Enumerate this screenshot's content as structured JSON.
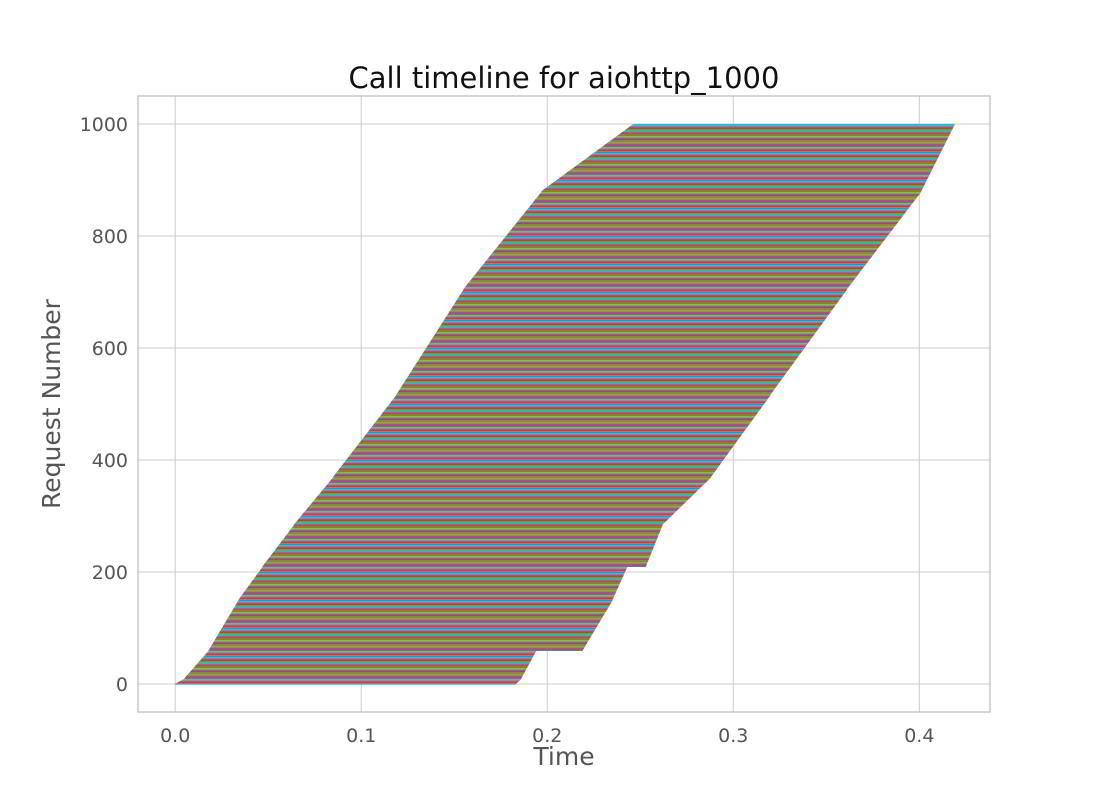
{
  "chart_data": {
    "type": "line",
    "title": "Call timeline for aiohttp_1000",
    "xlabel": "Time",
    "ylabel": "Request Number",
    "xlim": [
      -0.02,
      0.438
    ],
    "ylim": [
      -50,
      1050
    ],
    "x_ticks": [
      0.0,
      0.1,
      0.2,
      0.3,
      0.4
    ],
    "x_tick_labels": [
      "0.0",
      "0.1",
      "0.2",
      "0.3",
      "0.4"
    ],
    "y_ticks": [
      0,
      200,
      400,
      600,
      800,
      1000
    ],
    "y_tick_labels": [
      "0",
      "200",
      "400",
      "600",
      "800",
      "1000"
    ],
    "grid": true,
    "n_requests": 1000,
    "segment_description": "Each request i is drawn as a horizontal line at y=i from its start time to its end time; start times advance in batches, end times rise roughly linearly.",
    "batches": [
      {
        "first_request": 0,
        "last_request": 10,
        "start": [
          0.0,
          0.005
        ],
        "end": [
          0.183,
          0.186
        ]
      },
      {
        "first_request": 10,
        "last_request": 60,
        "start": [
          0.005,
          0.018
        ],
        "end": [
          0.186,
          0.194
        ]
      },
      {
        "first_request": 60,
        "last_request": 150,
        "start": [
          0.018,
          0.034
        ],
        "end": [
          0.219,
          0.235
        ]
      },
      {
        "first_request": 150,
        "last_request": 210,
        "start": [
          0.034,
          0.047
        ],
        "end": [
          0.235,
          0.243
        ]
      },
      {
        "first_request": 210,
        "last_request": 285,
        "start": [
          0.047,
          0.064
        ],
        "end": [
          0.253,
          0.262
        ]
      },
      {
        "first_request": 285,
        "last_request": 370,
        "start": [
          0.064,
          0.085
        ],
        "end": [
          0.262,
          0.288
        ]
      },
      {
        "first_request": 370,
        "last_request": 517,
        "start": [
          0.085,
          0.119
        ],
        "end": [
          0.288,
          0.32
        ]
      },
      {
        "first_request": 517,
        "last_request": 705,
        "start": [
          0.119,
          0.155
        ],
        "end": [
          0.32,
          0.361
        ]
      },
      {
        "first_request": 705,
        "last_request": 880,
        "start": [
          0.155,
          0.197
        ],
        "end": [
          0.361,
          0.401
        ]
      },
      {
        "first_request": 880,
        "last_request": 1000,
        "start": [
          0.197,
          0.246
        ],
        "end": [
          0.401,
          0.419
        ]
      }
    ],
    "colors": [
      "#1f77b4",
      "#ff7f0e",
      "#2ca02c",
      "#d62728",
      "#9467bd",
      "#8c564b",
      "#e377c2",
      "#7f7f7f",
      "#bcbd22",
      "#17becf"
    ]
  }
}
